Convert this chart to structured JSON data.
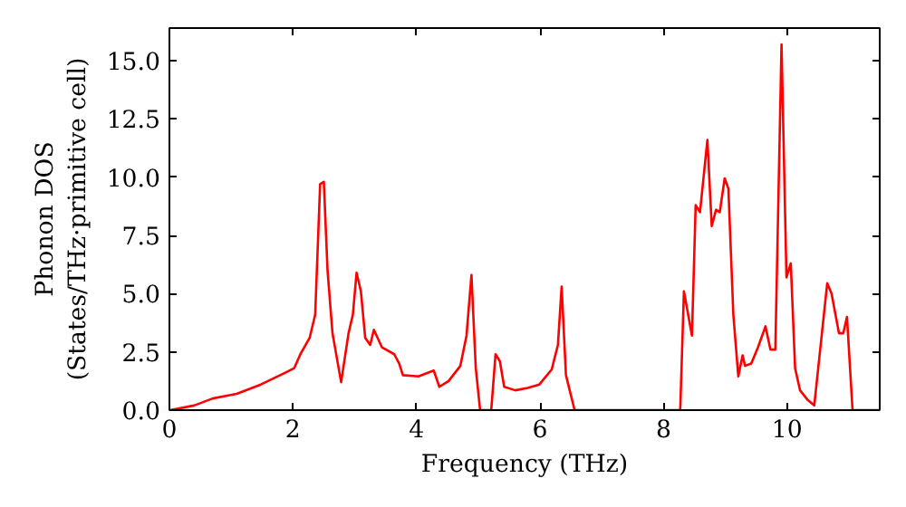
{
  "chart_data": {
    "type": "line",
    "xlabel": "Frequency (THz)",
    "ylabel": "Phonon DOS\n(States/THz·primitive cell)",
    "xlim": [
      0,
      11.5
    ],
    "ylim": [
      0,
      16.4
    ],
    "xticks": [
      0,
      2,
      4,
      6,
      8,
      10
    ],
    "yticks": [
      {
        "value": 0,
        "label": "0.0"
      },
      {
        "value": 2.5,
        "label": "2.5"
      },
      {
        "value": 5,
        "label": "5.0"
      },
      {
        "value": 7.5,
        "label": "7.5"
      },
      {
        "value": 10,
        "label": "10.0"
      },
      {
        "value": 12.5,
        "label": "12.5"
      },
      {
        "value": 15,
        "label": "15.0"
      }
    ],
    "grid": false,
    "marker": "none",
    "line_style": "solid",
    "series": [
      {
        "color": "#ff0000",
        "x": [
          0.01,
          0.4,
          0.7,
          1.09,
          1.48,
          1.87,
          2.02,
          2.12,
          2.27,
          2.36,
          2.44,
          2.5,
          2.56,
          2.64,
          2.78,
          2.9,
          2.97,
          3.03,
          3.1,
          3.17,
          3.25,
          3.31,
          3.44,
          3.64,
          3.72,
          3.78,
          4.03,
          4.28,
          4.37,
          4.52,
          4.71,
          4.81,
          4.89,
          4.96,
          5.03,
          5.21,
          5.28,
          5.35,
          5.42,
          5.6,
          5.8,
          5.99,
          6.19,
          6.29,
          6.35,
          6.42,
          6.56,
          8.27,
          8.33,
          8.46,
          8.52,
          8.59,
          8.71,
          8.78,
          8.85,
          8.91,
          8.99,
          9.05,
          9.13,
          9.21,
          9.28,
          9.32,
          9.42,
          9.53,
          9.65,
          9.73,
          9.81,
          9.91,
          9.99,
          10.06,
          10.13,
          10.21,
          10.33,
          10.44,
          10.65,
          10.72,
          10.84,
          10.91,
          10.97,
          11.06,
          11.5
        ],
        "values": [
          0,
          0.2,
          0.5,
          0.7,
          1.1,
          1.6,
          1.8,
          2.4,
          3.1,
          4.1,
          9.7,
          9.8,
          6.0,
          3.3,
          1.2,
          3.3,
          4.1,
          5.9,
          5.1,
          3.1,
          2.8,
          3.45,
          2.7,
          2.4,
          2.0,
          1.5,
          1.45,
          1.7,
          1.0,
          1.25,
          1.9,
          3.2,
          5.8,
          1.8,
          0,
          0,
          2.4,
          2.1,
          1.0,
          0.85,
          0.95,
          1.1,
          1.75,
          2.8,
          5.3,
          1.5,
          0,
          0,
          5.1,
          3.2,
          8.8,
          8.5,
          11.6,
          7.9,
          8.6,
          8.5,
          9.95,
          9.5,
          4.1,
          1.45,
          2.35,
          1.9,
          2.0,
          2.7,
          3.6,
          2.6,
          2.6,
          15.7,
          5.7,
          6.3,
          1.8,
          0.85,
          0.45,
          0.2,
          5.45,
          5.0,
          3.3,
          3.3,
          4.0,
          0,
          0
        ]
      }
    ]
  }
}
